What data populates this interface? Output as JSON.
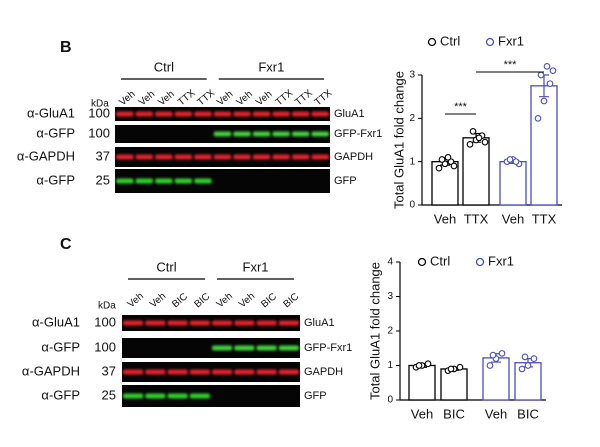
{
  "panels": [
    {
      "label": "B",
      "groups": [
        "Ctrl",
        "Fxr1"
      ],
      "kda_header": "kDa",
      "lanes": [
        "Veh",
        "Veh",
        "Veh",
        "TTX",
        "TTX",
        "Veh",
        "Veh",
        "Veh",
        "TTX",
        "TTX",
        "TTX"
      ],
      "rows": [
        {
          "antibody": "α-GluA1",
          "kda": "100",
          "band": "GluA1"
        },
        {
          "antibody": "α-GFP",
          "kda": "100",
          "band": "GFP-Fxr1"
        },
        {
          "antibody": "α-GAPDH",
          "kda": "37",
          "band": "GAPDH"
        },
        {
          "antibody": "α-GFP",
          "kda": "25",
          "band": "GFP"
        }
      ]
    },
    {
      "label": "C",
      "groups": [
        "Ctrl",
        "Fxr1"
      ],
      "kda_header": "kDa",
      "lanes": [
        "Veh",
        "Veh",
        "BIC",
        "BIC",
        "Veh",
        "Veh",
        "BIC",
        "BIC"
      ],
      "rows": [
        {
          "antibody": "α-GluA1",
          "kda": "100",
          "band": "GluA1"
        },
        {
          "antibody": "α-GFP",
          "kda": "100",
          "band": "GFP-Fxr1"
        },
        {
          "antibody": "α-GAPDH",
          "kda": "37",
          "band": "GAPDH"
        },
        {
          "antibody": "α-GFP",
          "kda": "25",
          "band": "GFP"
        }
      ]
    }
  ],
  "chart_data": [
    {
      "type": "bar",
      "y_label": "Total GluA1 fold change",
      "categories": [
        "Veh",
        "TTX",
        "Veh",
        "TTX"
      ],
      "ylim": [
        0,
        3
      ],
      "yticks": [
        0,
        1,
        2,
        3
      ],
      "series": [
        {
          "name": "Ctrl",
          "color": "#000000",
          "values": [
            1.0,
            1.55,
            null,
            null
          ],
          "errors": [
            0.08,
            0.1,
            null,
            null
          ],
          "points": [
            [
              0.85,
              0.95,
              1.0,
              1.05,
              1.1,
              0.9
            ],
            [
              1.4,
              1.5,
              1.6,
              1.7,
              1.55,
              1.45
            ],
            null,
            null
          ]
        },
        {
          "name": "Fxr1",
          "color": "#4a4fb8",
          "values": [
            null,
            null,
            1.0,
            2.75
          ],
          "errors": [
            null,
            null,
            0.04,
            0.25
          ],
          "points": [
            null,
            null,
            [
              1.0,
              1.05,
              0.95,
              1.05,
              1.0
            ],
            [
              2.0,
              2.4,
              2.8,
              3.0,
              3.2,
              3.1
            ]
          ]
        }
      ],
      "annotations": [
        "***",
        "***"
      ]
    },
    {
      "type": "bar",
      "y_label": "Total GluA1 fold change",
      "categories": [
        "Veh",
        "BIC",
        "Veh",
        "BIC"
      ],
      "ylim": [
        0,
        4
      ],
      "yticks": [
        0,
        1,
        2,
        3,
        4
      ],
      "series": [
        {
          "name": "Ctrl",
          "color": "#000000",
          "values": [
            1.0,
            0.9,
            null,
            null
          ],
          "errors": [
            0.05,
            0.04,
            null,
            null
          ],
          "points": [
            [
              0.95,
              1.0,
              1.05,
              1.0
            ],
            [
              0.85,
              0.9,
              0.95,
              0.9
            ],
            null,
            null
          ]
        },
        {
          "name": "Fxr1",
          "color": "#4a4fb8",
          "values": [
            null,
            null,
            1.22,
            1.08
          ],
          "errors": [
            null,
            null,
            0.12,
            0.12
          ],
          "points": [
            null,
            null,
            [
              1.0,
              1.2,
              1.35,
              1.3
            ],
            [
              0.9,
              1.0,
              1.2,
              1.25
            ]
          ]
        }
      ]
    }
  ]
}
